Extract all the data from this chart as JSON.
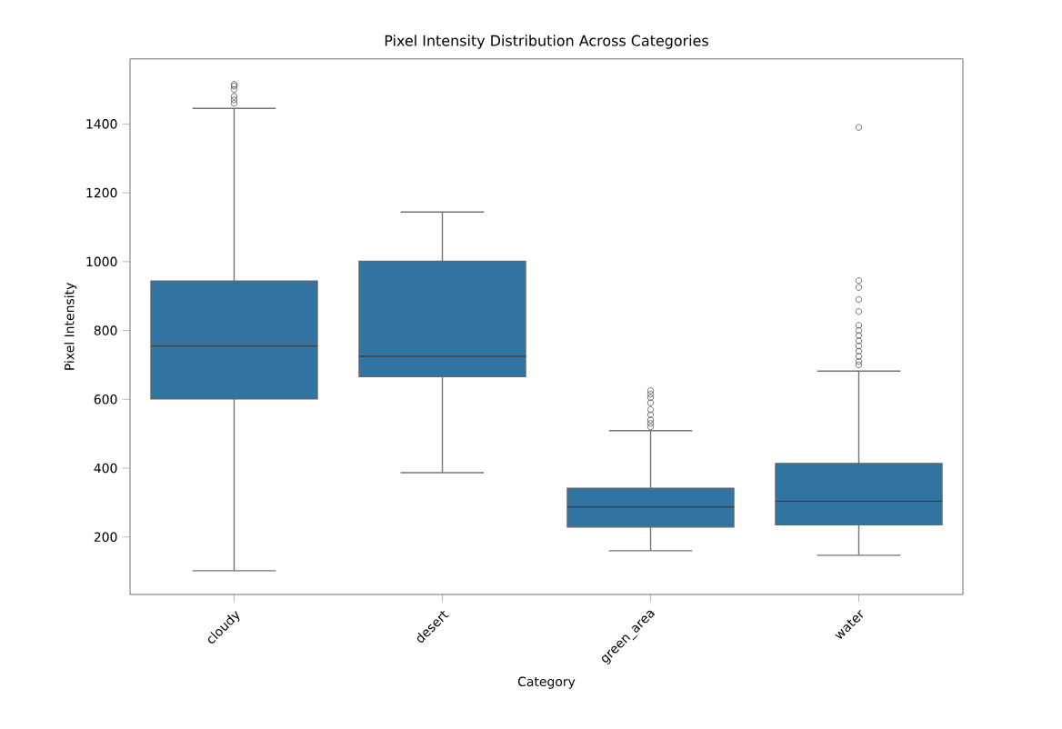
{
  "chart_data": {
    "type": "box",
    "title": "Pixel Intensity Distribution Across Categories",
    "xlabel": "Category",
    "ylabel": "Pixel Intensity",
    "categories": [
      "cloudy",
      "desert",
      "green_area",
      "water"
    ],
    "color": "#3274a1",
    "boxes": [
      {
        "low": 102,
        "q1": 601,
        "median": 755,
        "q3": 944,
        "high": 1445,
        "outliers": [
          1460,
          1470,
          1480,
          1500,
          1510,
          1515
        ]
      },
      {
        "low": 387,
        "q1": 666,
        "median": 725,
        "q3": 1001,
        "high": 1144
      },
      {
        "low": 160,
        "q1": 229,
        "median": 287,
        "q3": 342,
        "high": 509,
        "outliers": [
          520,
          530,
          540,
          555,
          570,
          590,
          605,
          615,
          625
        ]
      },
      {
        "low": 147,
        "q1": 235,
        "median": 304,
        "q3": 414,
        "high": 682,
        "outliers": [
          700,
          710,
          725,
          740,
          755,
          770,
          785,
          800,
          815,
          855,
          890,
          925,
          945,
          1390
        ]
      }
    ],
    "ylim": [
      33,
      1589
    ],
    "yticks": [
      200,
      400,
      600,
      800,
      1000,
      1200,
      1400
    ]
  }
}
